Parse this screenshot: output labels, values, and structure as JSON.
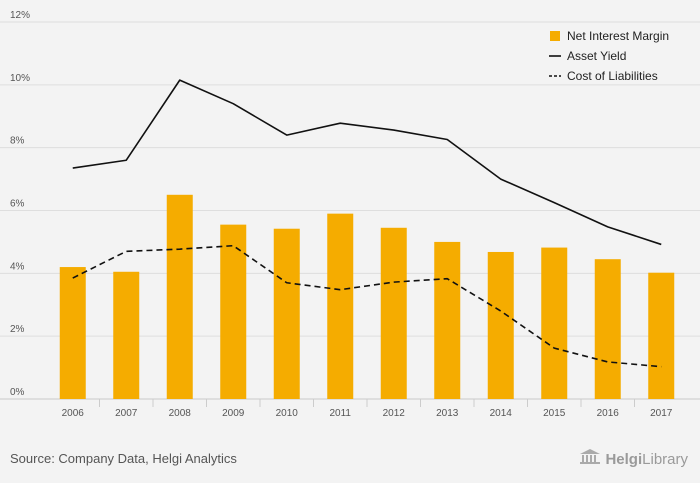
{
  "chart_data": {
    "type": "bar",
    "categories": [
      "2006",
      "2007",
      "2008",
      "2009",
      "2010",
      "2011",
      "2012",
      "2013",
      "2014",
      "2015",
      "2016",
      "2017"
    ],
    "series": [
      {
        "name": "Net Interest Margin",
        "type": "bar",
        "color": "#f5ac00",
        "values": [
          4.2,
          4.05,
          6.5,
          5.55,
          5.42,
          5.9,
          5.45,
          5.0,
          4.68,
          4.82,
          4.45,
          4.02
        ]
      },
      {
        "name": "Asset Yield",
        "type": "line",
        "style": "solid",
        "color": "#111111",
        "values": [
          7.35,
          7.6,
          10.15,
          9.4,
          8.4,
          8.78,
          8.56,
          8.26,
          7.0,
          6.25,
          5.48,
          4.92
        ]
      },
      {
        "name": "Cost of Liabilities",
        "type": "line",
        "style": "dashed",
        "color": "#111111",
        "values": [
          3.85,
          4.7,
          4.77,
          4.88,
          3.7,
          3.48,
          3.72,
          3.83,
          2.8,
          1.62,
          1.18,
          1.03
        ]
      }
    ],
    "yticks": [
      "0%",
      "2%",
      "4%",
      "6%",
      "8%",
      "10%",
      "12%"
    ],
    "ylim": [
      0,
      12
    ],
    "grid": true,
    "legend_position": "top-right"
  },
  "footer": {
    "source": "Source: Company Data, Helgi Analytics",
    "logo_left": "Helgi",
    "logo_right": "Library"
  }
}
